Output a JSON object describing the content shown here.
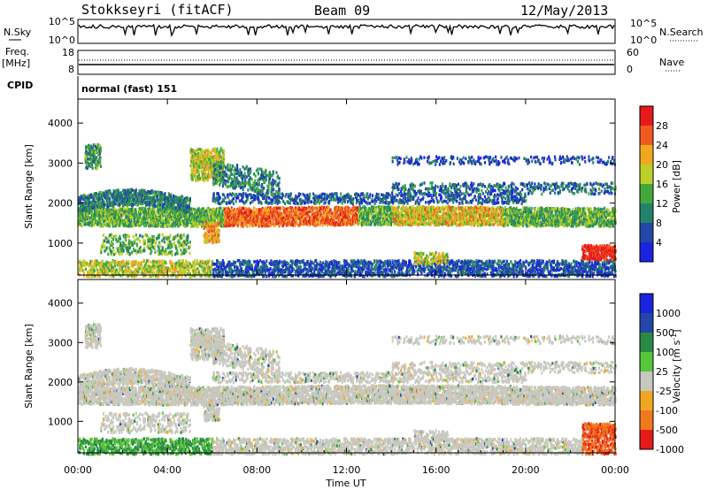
{
  "header": {
    "radar": "Stokkseyri (fitACF)",
    "beam": "Beam 09",
    "date": "12/May/2013"
  },
  "left_labels": {
    "nsky": "N.Sky",
    "freq": "Freq.",
    "freq_unit": "[MHz]",
    "cpid": "CPID"
  },
  "right_labels": {
    "nsearch": "N.Search",
    "nave": "Nave"
  },
  "cpid_text": "normal (fast) 151",
  "chart_data": [
    {
      "panel": "noise",
      "type": "line",
      "left_ticks": [
        "10^5",
        "10^0"
      ],
      "right_ticks": [
        "10^5",
        "10^0"
      ],
      "series": [
        {
          "name": "N.Sky",
          "style": "solid"
        },
        {
          "name": "N.Search",
          "style": "dotted"
        }
      ]
    },
    {
      "panel": "frequency",
      "type": "line",
      "left_ticks": [
        "18",
        "8"
      ],
      "right_ticks": [
        "60",
        "0"
      ],
      "series": [
        {
          "name": "Freq.",
          "style": "solid"
        },
        {
          "name": "Nave",
          "style": "dotted"
        }
      ]
    },
    {
      "panel": "power",
      "type": "heatmap",
      "ylabel": "Slant Range [km]",
      "y_ticks": [
        "1000",
        "2000",
        "3000",
        "4000"
      ],
      "ylim": [
        200,
        4600
      ],
      "colorbar": {
        "label": "Power [dB]",
        "ticks": [
          "4",
          "8",
          "12",
          "16",
          "20",
          "24",
          "28"
        ],
        "colors": [
          "#1a24e0",
          "#2247a8",
          "#23826a",
          "#42a83d",
          "#bcd02a",
          "#f0a823",
          "#ef5a1e",
          "#e61a1a"
        ],
        "range": [
          0,
          32
        ]
      }
    },
    {
      "panel": "velocity",
      "type": "heatmap",
      "ylabel": "Slant Range [km]",
      "y_ticks": [
        "1000",
        "2000",
        "3000",
        "4000"
      ],
      "ylim": [
        200,
        4600
      ],
      "colorbar": {
        "label": "Velocity [m s-1]",
        "ticks": [
          "1000",
          "500",
          "100",
          "25",
          "-25",
          "-100",
          "-500",
          "-1000"
        ],
        "colors": [
          "#1a24e0",
          "#2247a8",
          "#2a8a45",
          "#58c63a",
          "#c8c8c0",
          "#f0a823",
          "#ef7a1e",
          "#e61a1a"
        ]
      }
    }
  ],
  "x_axis": {
    "ticks": [
      "00:00",
      "04:00",
      "08:00",
      "12:00",
      "16:00",
      "20:00",
      "00:00"
    ],
    "label": "Time UT",
    "range_hours": [
      0,
      24
    ]
  }
}
